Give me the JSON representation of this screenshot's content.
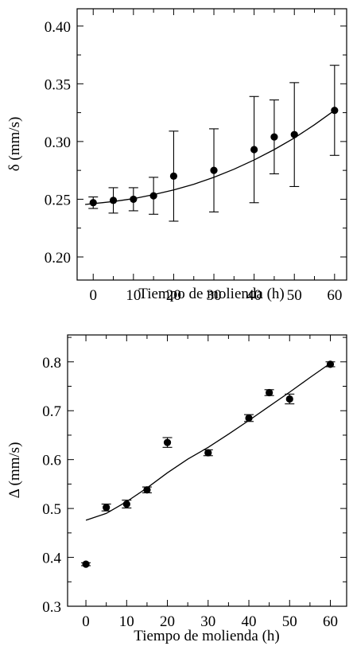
{
  "chart_data": [
    {
      "type": "scatter",
      "title": "",
      "xlabel": "Tiempo de molienda (h)",
      "ylabel": "δ (mm/s)",
      "xlim": [
        -4,
        63
      ],
      "ylim": [
        0.18,
        0.415
      ],
      "x_ticks": [
        0,
        10,
        20,
        30,
        40,
        50,
        60
      ],
      "x_tick_labels": [
        "0",
        "10",
        "20",
        "30",
        "40",
        "50",
        "60"
      ],
      "y_ticks": [
        0.2,
        0.25,
        0.3,
        0.35,
        0.4
      ],
      "y_tick_labels": [
        "0.20",
        "0.25",
        "0.30",
        "0.35",
        "0.40"
      ],
      "grid": false,
      "series": [
        {
          "x": [
            0,
            5,
            10,
            15,
            20,
            30,
            40,
            45,
            50,
            60
          ],
          "y": [
            0.247,
            0.249,
            0.25,
            0.253,
            0.27,
            0.275,
            0.293,
            0.304,
            0.306,
            0.327
          ],
          "err": [
            0.005,
            0.011,
            0.01,
            0.016,
            0.039,
            0.036,
            0.046,
            0.032,
            0.045,
            0.039
          ]
        }
      ],
      "fit_line": {
        "x": [
          -2,
          5,
          10,
          15,
          20,
          25,
          30,
          35,
          40,
          45,
          50,
          55,
          60
        ],
        "y": [
          0.2455,
          0.248,
          0.2505,
          0.254,
          0.258,
          0.263,
          0.269,
          0.276,
          0.284,
          0.293,
          0.303,
          0.3145,
          0.327
        ]
      }
    },
    {
      "type": "scatter",
      "title": "",
      "xlabel": "Tiempo de molienda (h)",
      "ylabel": "Δ (mm/s)",
      "xlim": [
        -4.5,
        64
      ],
      "ylim": [
        0.3,
        0.855
      ],
      "x_ticks": [
        0,
        10,
        20,
        30,
        40,
        50,
        60
      ],
      "x_tick_labels": [
        "0",
        "10",
        "20",
        "30",
        "40",
        "50",
        "60"
      ],
      "y_ticks": [
        0.3,
        0.4,
        0.5,
        0.6,
        0.7,
        0.8
      ],
      "y_tick_labels": [
        "0.3",
        "0.4",
        "0.5",
        "0.6",
        "0.7",
        "0.8"
      ],
      "grid": false,
      "series": [
        {
          "x": [
            0,
            5,
            10,
            15,
            20,
            30,
            40,
            45,
            50,
            60
          ],
          "y": [
            0.386,
            0.502,
            0.509,
            0.538,
            0.635,
            0.614,
            0.685,
            0.737,
            0.724,
            0.795
          ],
          "err": [
            0.003,
            0.007,
            0.008,
            0.006,
            0.01,
            0.006,
            0.007,
            0.006,
            0.01,
            0.005
          ]
        }
      ],
      "fit_line": {
        "x": [
          0,
          5,
          10,
          15,
          20,
          25,
          30,
          35,
          40,
          45,
          50,
          55,
          60
        ],
        "y": [
          0.476,
          0.49,
          0.514,
          0.542,
          0.573,
          0.601,
          0.625,
          0.652,
          0.68,
          0.709,
          0.738,
          0.768,
          0.797
        ]
      }
    }
  ]
}
